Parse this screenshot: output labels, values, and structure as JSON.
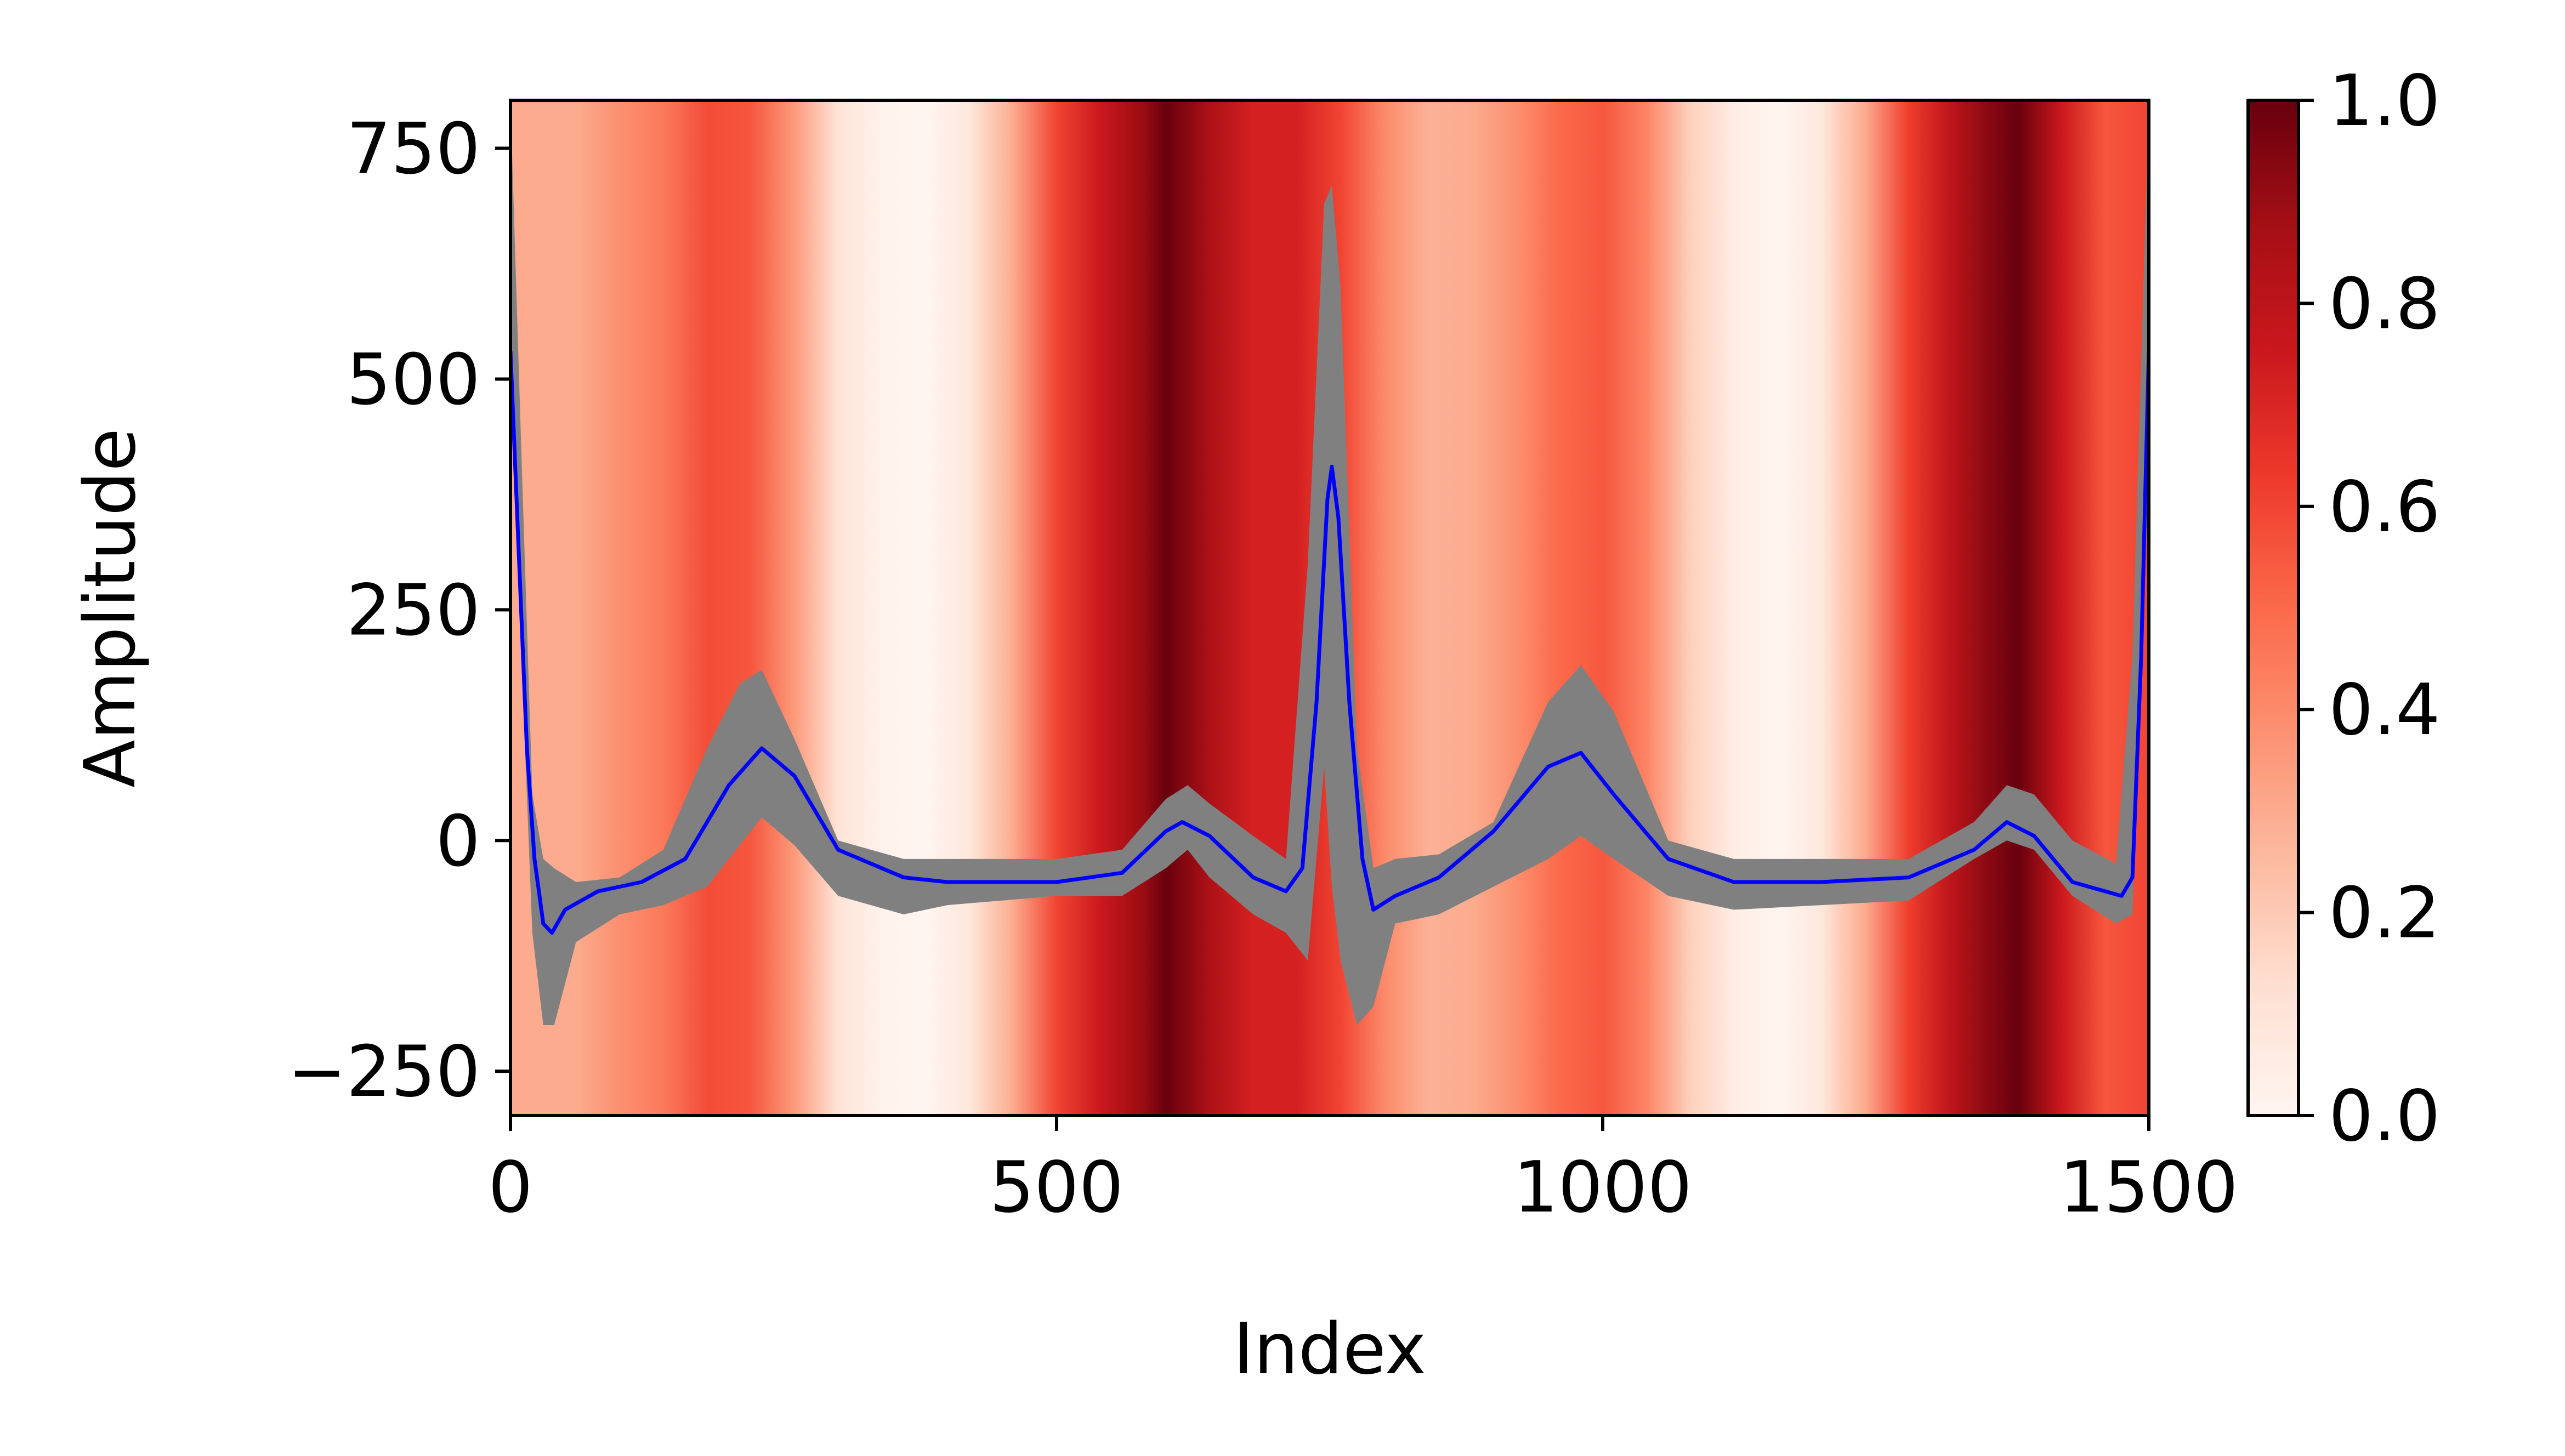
{
  "chart_data": {
    "type": "area",
    "xlabel": "Index",
    "ylabel": "Amplitude",
    "xlim": [
      0,
      1500
    ],
    "ylim": [
      -298,
      802
    ],
    "xticks": [
      0,
      500,
      1000,
      1500
    ],
    "xtick_labels": [
      "0",
      "500",
      "1000",
      "1500"
    ],
    "yticks": [
      -250,
      0,
      250,
      500,
      750
    ],
    "ytick_labels": [
      "−250",
      "0",
      "250",
      "500",
      "750"
    ],
    "grid": false,
    "legend": "none",
    "background_heatmap": {
      "colormap": "Reds",
      "x": [
        0,
        30,
        60,
        100,
        140,
        180,
        220,
        260,
        300,
        340,
        380,
        420,
        460,
        500,
        540,
        580,
        600,
        640,
        680,
        720,
        760,
        800,
        840,
        880,
        920,
        960,
        1000,
        1040,
        1080,
        1120,
        1160,
        1200,
        1240,
        1280,
        1320,
        1350,
        1380,
        1420,
        1460,
        1500
      ],
      "values": [
        0.3,
        0.3,
        0.3,
        0.38,
        0.45,
        0.58,
        0.55,
        0.35,
        0.1,
        0.02,
        0.0,
        0.08,
        0.3,
        0.6,
        0.75,
        0.9,
        1.0,
        0.85,
        0.72,
        0.72,
        0.6,
        0.4,
        0.28,
        0.3,
        0.38,
        0.5,
        0.55,
        0.42,
        0.18,
        0.05,
        0.0,
        0.08,
        0.3,
        0.62,
        0.8,
        0.92,
        1.0,
        0.75,
        0.55,
        0.6
      ]
    },
    "colorbar": {
      "min": 0.0,
      "max": 1.0,
      "ticks": [
        0.0,
        0.2,
        0.4,
        0.6,
        0.8,
        1.0
      ],
      "tick_labels": [
        "0.0",
        "0.2",
        "0.4",
        "0.6",
        "0.8",
        "1.0"
      ]
    },
    "band_color": "#808080",
    "line_color": "#0000ff",
    "series": [
      {
        "kind": "band",
        "x": [
          0,
          10,
          20,
          30,
          40,
          60,
          100,
          140,
          180,
          210,
          230,
          260,
          300,
          360,
          400,
          500,
          560,
          600,
          620,
          640,
          680,
          710,
          730,
          745,
          752,
          760,
          775,
          790,
          810,
          850,
          900,
          950,
          980,
          1010,
          1060,
          1120,
          1200,
          1280,
          1340,
          1370,
          1395,
          1430,
          1470,
          1485,
          1500
        ],
        "upper": [
          800,
          420,
          50,
          -20,
          -30,
          -45,
          -40,
          -10,
          100,
          170,
          185,
          110,
          0,
          -20,
          -20,
          -20,
          -10,
          45,
          60,
          40,
          5,
          -20,
          300,
          690,
          710,
          600,
          100,
          -30,
          -20,
          -15,
          20,
          150,
          190,
          140,
          0,
          -20,
          -20,
          -20,
          20,
          60,
          50,
          0,
          -25,
          200,
          800
        ],
        "lower": [
          500,
          200,
          -100,
          -200,
          -200,
          -110,
          -80,
          -70,
          -50,
          -5,
          25,
          -5,
          -60,
          -80,
          -70,
          -60,
          -60,
          -30,
          -10,
          -40,
          -80,
          -100,
          -130,
          80,
          -50,
          -130,
          -200,
          -180,
          -90,
          -80,
          -50,
          -20,
          5,
          -20,
          -60,
          -75,
          -70,
          -65,
          -20,
          0,
          -10,
          -60,
          -90,
          -80,
          400
        ]
      },
      {
        "kind": "line",
        "x": [
          0,
          8,
          15,
          22,
          30,
          38,
          50,
          80,
          120,
          160,
          200,
          230,
          260,
          300,
          360,
          400,
          500,
          560,
          600,
          615,
          640,
          680,
          710,
          725,
          738,
          748,
          752,
          758,
          768,
          780,
          790,
          810,
          850,
          900,
          950,
          980,
          1010,
          1060,
          1120,
          1200,
          1280,
          1340,
          1370,
          1395,
          1430,
          1460,
          1475,
          1485,
          1493,
          1500
        ],
        "y": [
          530,
          300,
          100,
          -20,
          -90,
          -100,
          -75,
          -55,
          -45,
          -20,
          60,
          100,
          70,
          -10,
          -40,
          -45,
          -45,
          -35,
          10,
          20,
          5,
          -40,
          -55,
          -30,
          150,
          370,
          405,
          350,
          150,
          -20,
          -75,
          -60,
          -40,
          10,
          80,
          95,
          50,
          -20,
          -45,
          -45,
          -40,
          -10,
          20,
          5,
          -45,
          -55,
          -60,
          -40,
          200,
          530
        ]
      }
    ]
  }
}
